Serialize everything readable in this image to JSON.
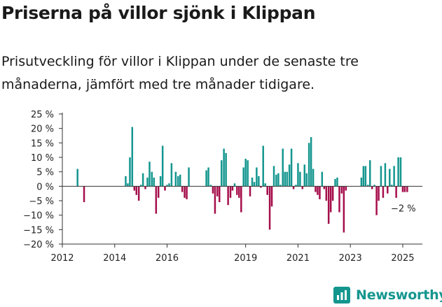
{
  "title": "Priserna på villor sjönk i Klippan",
  "subtitle": "Prisutveckling för villor i Klippan under de senaste tre månaderna, jämfört med tre månader tidigare.",
  "brand": {
    "name": "Newsworthy",
    "icon": "newsworthy-logo-icon",
    "color": "#14968f"
  },
  "chart_data": {
    "type": "bar",
    "title": "",
    "xlabel": "",
    "ylabel": "",
    "ylim": [
      -20,
      25
    ],
    "xlim": [
      2012.0,
      2025.75
    ],
    "grid": false,
    "legend": "none",
    "colors": {
      "positive": "#14968f",
      "negative": "#a50e4b"
    },
    "y_ticks": [
      {
        "value": 25,
        "label": "25 %"
      },
      {
        "value": 20,
        "label": "20 %"
      },
      {
        "value": 15,
        "label": "15 %"
      },
      {
        "value": 10,
        "label": "10 %"
      },
      {
        "value": 5,
        "label": "5 %"
      },
      {
        "value": 0,
        "label": "0 %"
      },
      {
        "value": -5,
        "label": "−5 %"
      },
      {
        "value": -10,
        "label": "−10 %"
      },
      {
        "value": -15,
        "label": "−15 %"
      },
      {
        "value": -20,
        "label": "−20 %"
      }
    ],
    "x_ticks": [
      {
        "value": 2012,
        "label": "2012"
      },
      {
        "value": 2014,
        "label": "2014"
      },
      {
        "value": 2016,
        "label": "2016"
      },
      {
        "value": 2019,
        "label": "2019"
      },
      {
        "value": 2021,
        "label": "2021"
      },
      {
        "value": 2023,
        "label": "2023"
      },
      {
        "value": 2025,
        "label": "2025"
      }
    ],
    "annotation": {
      "text": "−2 %",
      "x": 2025.5,
      "y": -2
    },
    "series": [
      {
        "x": [
          2012.58,
          2012.83,
          2014.42,
          2014.5,
          2014.58,
          2014.67,
          2014.75,
          2014.83,
          2014.92,
          2015.0,
          2015.08,
          2015.17,
          2015.25,
          2015.33,
          2015.42,
          2015.5,
          2015.58,
          2015.67,
          2015.75,
          2015.83,
          2015.92,
          2016.0,
          2016.08,
          2016.17,
          2016.33,
          2016.42,
          2016.5,
          2016.58,
          2016.67,
          2016.75,
          2016.83,
          2017.5,
          2017.58,
          2017.67,
          2017.75,
          2017.83,
          2017.92,
          2018.0,
          2018.08,
          2018.17,
          2018.25,
          2018.33,
          2018.42,
          2018.5,
          2018.58,
          2018.67,
          2018.75,
          2018.83,
          2018.92,
          2019.0,
          2019.08,
          2019.17,
          2019.25,
          2019.33,
          2019.42,
          2019.5,
          2019.58,
          2019.67,
          2019.75,
          2019.83,
          2019.92,
          2020.0,
          2020.08,
          2020.17,
          2020.25,
          2020.33,
          2020.42,
          2020.5,
          2020.58,
          2020.67,
          2020.75,
          2020.83,
          2020.92,
          2021.0,
          2021.08,
          2021.17,
          2021.25,
          2021.33,
          2021.42,
          2021.5,
          2021.58,
          2021.67,
          2021.75,
          2021.83,
          2021.92,
          2022.0,
          2022.08,
          2022.17,
          2022.25,
          2022.33,
          2022.42,
          2022.5,
          2022.58,
          2022.67,
          2022.75,
          2022.83,
          2023.42,
          2023.5,
          2023.58,
          2023.67,
          2023.75,
          2023.83,
          2023.92,
          2024.0,
          2024.08,
          2024.17,
          2024.25,
          2024.33,
          2024.42,
          2024.5,
          2024.58,
          2024.67,
          2024.75,
          2024.83,
          2024.92,
          2025.0,
          2025.08,
          2025.17
        ],
        "values": [
          6,
          -5.5,
          3.5,
          1,
          10,
          20.5,
          -1.5,
          -3,
          -5,
          0.5,
          4.5,
          -1,
          3,
          8.5,
          5,
          3,
          -9.5,
          -4,
          3.5,
          14,
          -1.5,
          0.5,
          1,
          8,
          5,
          3.5,
          4,
          -2,
          -4,
          -4.5,
          6.5,
          5.5,
          6.5,
          0.5,
          -2.5,
          -9.5,
          -3.5,
          -5.5,
          9,
          13,
          11.5,
          -6.5,
          -4,
          -1.5,
          1,
          -3,
          -4,
          -9,
          6.5,
          9.5,
          9,
          -3.5,
          3,
          1.5,
          6.5,
          3.5,
          -0.5,
          14,
          1,
          -3,
          -15,
          -7,
          7,
          4,
          4.5,
          0.5,
          13,
          5,
          5,
          7.5,
          13,
          -1,
          0.5,
          8,
          5,
          -1,
          7.5,
          4.5,
          15,
          17,
          6,
          -2,
          -3,
          -4.5,
          5,
          -1,
          -5,
          -13,
          -9,
          -5,
          2.5,
          3,
          -9,
          -2.5,
          -16,
          -1.5,
          3,
          7,
          7,
          0.5,
          9,
          -1,
          0.5,
          -10,
          -5,
          7,
          -4,
          8,
          -2.5,
          6,
          0.5,
          7,
          -4,
          10,
          10,
          -2,
          -2,
          -2
        ]
      }
    ]
  }
}
